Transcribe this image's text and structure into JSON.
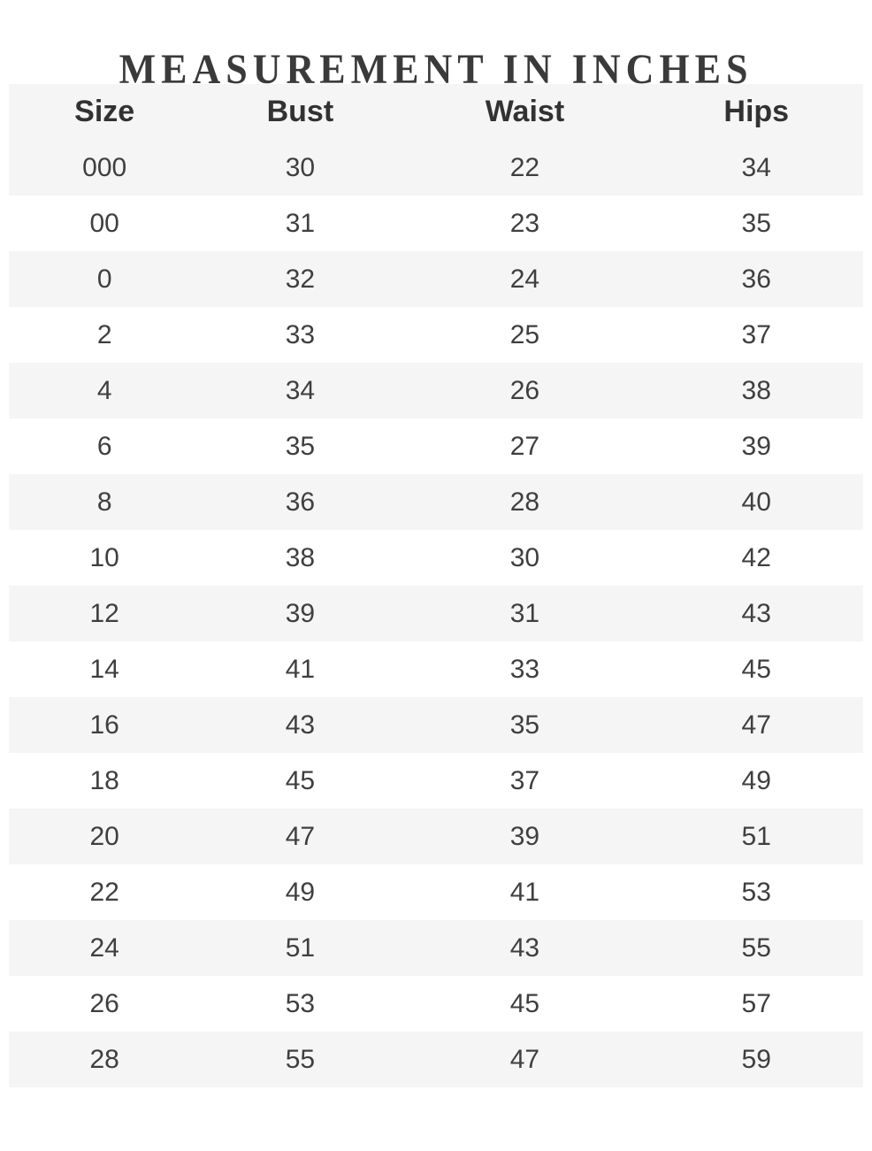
{
  "title": "MEASUREMENT IN INCHES",
  "chart_data": {
    "type": "table",
    "title": "MEASUREMENT IN INCHES",
    "columns": [
      "Size",
      "Bust",
      "Waist",
      "Hips"
    ],
    "rows": [
      [
        "000",
        "30",
        "22",
        "34"
      ],
      [
        "00",
        "31",
        "23",
        "35"
      ],
      [
        "0",
        "32",
        "24",
        "36"
      ],
      [
        "2",
        "33",
        "25",
        "37"
      ],
      [
        "4",
        "34",
        "26",
        "38"
      ],
      [
        "6",
        "35",
        "27",
        "39"
      ],
      [
        "8",
        "36",
        "28",
        "40"
      ],
      [
        "10",
        "38",
        "30",
        "42"
      ],
      [
        "12",
        "39",
        "31",
        "43"
      ],
      [
        "14",
        "41",
        "33",
        "45"
      ],
      [
        "16",
        "43",
        "35",
        "47"
      ],
      [
        "18",
        "45",
        "37",
        "49"
      ],
      [
        "20",
        "47",
        "39",
        "51"
      ],
      [
        "22",
        "49",
        "41",
        "53"
      ],
      [
        "24",
        "51",
        "43",
        "55"
      ],
      [
        "26",
        "53",
        "45",
        "57"
      ],
      [
        "28",
        "55",
        "47",
        "59"
      ]
    ],
    "layout": {
      "striped_rows": true,
      "stripe_pattern": "header and odd data rows shaded",
      "text_align": "center"
    }
  },
  "colors": {
    "background": "#ffffff",
    "stripe": "#f5f5f5",
    "title_text": "#3a3a3a",
    "header_text": "#323232",
    "cell_text": "#3f3f3f"
  }
}
